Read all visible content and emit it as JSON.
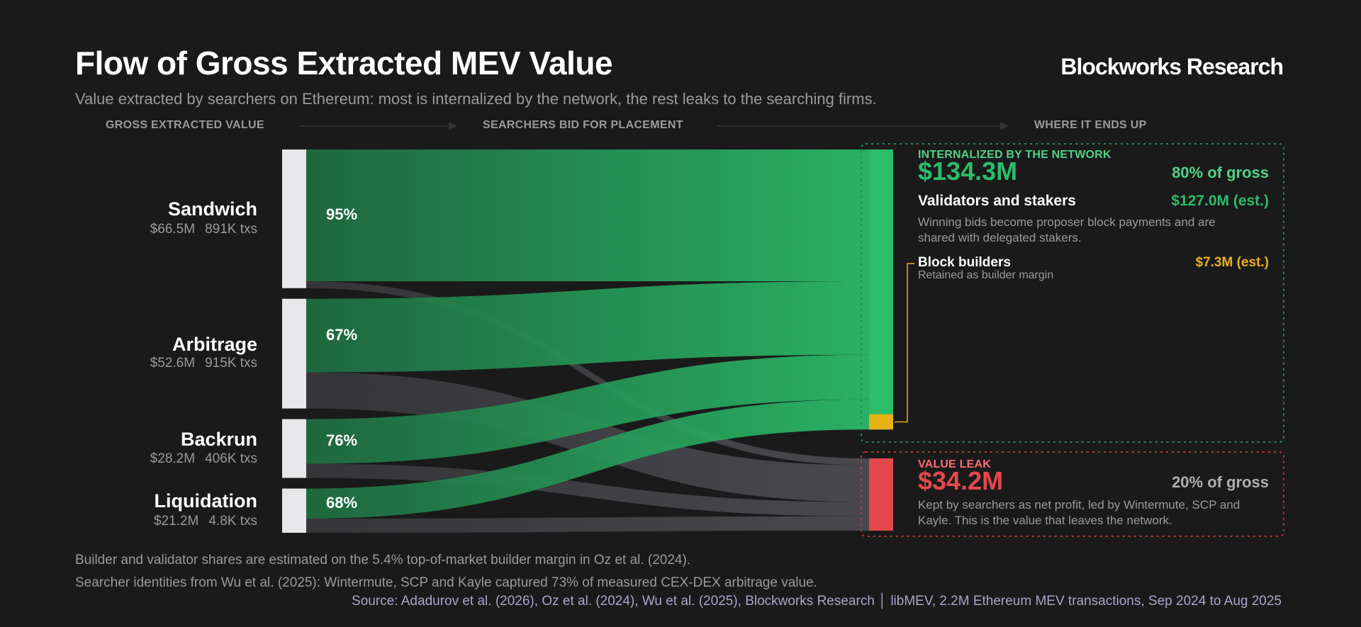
{
  "header": {
    "title": "Flow of Gross Extracted MEV Value",
    "brand": "Blockworks Research",
    "subtitle": "Value extracted by searchers on Ethereum: most is internalized by the network, the rest leaks to the searching firms."
  },
  "stages": [
    "GROSS EXTRACTED VALUE",
    "SEARCHERS BID FOR PLACEMENT",
    "WHERE IT ENDS UP"
  ],
  "categories": [
    {
      "name": "Sandwich",
      "value": "$66.5M",
      "txs": "891K txs",
      "bid_pct": "95%",
      "gross_musd": 66.5,
      "bid_share": 0.95
    },
    {
      "name": "Arbitrage",
      "value": "$52.6M",
      "txs": "915K txs",
      "bid_pct": "67%",
      "gross_musd": 52.6,
      "bid_share": 0.67
    },
    {
      "name": "Backrun",
      "value": "$28.2M",
      "txs": "406K txs",
      "bid_pct": "76%",
      "gross_musd": 28.2,
      "bid_share": 0.76
    },
    {
      "name": "Liquidation",
      "value": "$21.2M",
      "txs": "4.8K txs",
      "bid_pct": "68%",
      "gross_musd": 21.2,
      "bid_share": 0.68
    }
  ],
  "internalized": {
    "label": "INTERNALIZED BY THE NETWORK",
    "amount": "$134.3M",
    "share": "80% of gross",
    "validators": {
      "title": "Validators and stakers",
      "value": "$127.0M (est.)",
      "description": "Winning bids become proposer block payments and are shared with delegated stakers."
    },
    "builders": {
      "title": "Block builders",
      "value": "$7.3M (est.)",
      "description": "Retained as builder margin"
    }
  },
  "leak": {
    "label": "VALUE LEAK",
    "amount": "$34.2M",
    "share": "20% of gross",
    "description": "Kept by searchers as net profit, led by Wintermute, SCP and Kayle. This is the value that leaves the network."
  },
  "footnotes": [
    "Builder and validator shares are estimated on the 5.4% top-of-market builder margin in Oz et al. (2024).",
    "Searcher identities from Wu et al. (2025): Wintermute, SCP and Kayle captured 73% of measured CEX-DEX arbitrage value."
  ],
  "source": "Source: Adadurov et al. (2026), Oz et al. (2024), Wu et al. (2025), Blockworks Research  │  libMEV, 2.2M Ethereum MEV transactions, Sep 2024 to Aug 2025",
  "colors": {
    "background": "#1a1a1a",
    "network_green": "#2bbd6a",
    "network_green_dark": "#1f6e41",
    "leak_red": "#e5484d",
    "builder_gold": "#e8b116",
    "leak_flow_gray": "#4a4a50",
    "source_bar": "#e8e8ea",
    "label_green": "#4fd287",
    "label_red": "#ff6b6e",
    "panel_green_border": "#2f8a57",
    "panel_red_border": "#b8393c"
  }
}
